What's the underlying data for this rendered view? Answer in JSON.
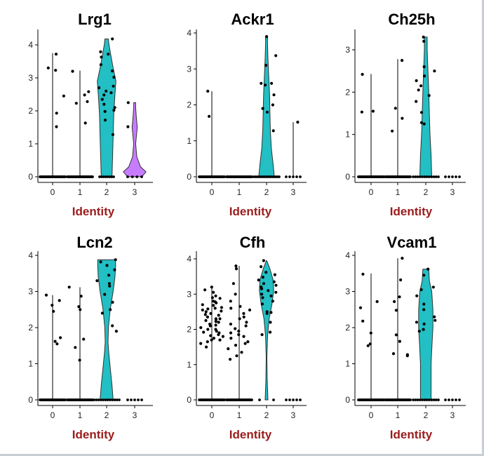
{
  "chart_data": [
    {
      "type": "violin",
      "title": "Lrg1",
      "xlabel": "Identity",
      "categories": [
        "0",
        "1",
        "2",
        "3"
      ],
      "yticks": [
        0,
        1,
        2,
        3,
        4
      ],
      "ylim": [
        0,
        4.2
      ],
      "colors": {
        "2": "#22bfc4",
        "3": "#c77cff"
      },
      "groups": [
        {
          "category": "0",
          "max": 3.75,
          "zero_count": 40,
          "points": [
            3.72,
            3.3,
            3.23,
            2.45,
            1.93,
            1.52
          ]
        },
        {
          "category": "1",
          "max": 3.22,
          "zero_count": 40,
          "points": [
            3.2,
            2.58,
            2.48,
            2.28,
            1.63,
            2.23
          ]
        },
        {
          "category": "2",
          "max": 4.18,
          "zero_count": 8,
          "points": [
            4.18,
            3.79,
            3.72,
            3.63,
            3.4,
            3.21,
            3.02,
            2.75,
            2.7,
            2.6,
            2.55,
            2.48,
            2.35,
            2.2,
            2.1,
            2.02,
            1.98,
            1.72,
            1.28
          ],
          "violin": [
            [
              0,
              0.45
            ],
            [
              0.6,
              0.5
            ],
            [
              1.2,
              0.55
            ],
            [
              1.9,
              0.6
            ],
            [
              2.5,
              0.7
            ],
            [
              2.9,
              0.78
            ],
            [
              3.3,
              0.55
            ],
            [
              3.7,
              0.35
            ],
            [
              4.0,
              0.2
            ],
            [
              4.18,
              0.14
            ]
          ]
        },
        {
          "category": "3",
          "max": 2.25,
          "zero_count": 4,
          "points": [
            2.25,
            1.52
          ],
          "violin": [
            [
              0,
              0.6
            ],
            [
              0.15,
              0.95
            ],
            [
              0.3,
              0.5
            ],
            [
              0.6,
              0.18
            ],
            [
              1.0,
              0.08
            ],
            [
              1.5,
              0.22
            ],
            [
              1.8,
              0.14
            ],
            [
              2.1,
              0.08
            ],
            [
              2.25,
              0.08
            ]
          ]
        }
      ]
    },
    {
      "type": "violin",
      "title": "Ackr1",
      "xlabel": "Identity",
      "categories": [
        "0",
        "1",
        "2",
        "3"
      ],
      "yticks": [
        0,
        1,
        2,
        3,
        4
      ],
      "ylim": [
        0,
        4.1
      ],
      "colors": {
        "2": "#22bfc4"
      },
      "groups": [
        {
          "category": "0",
          "max": 2.38,
          "zero_count": 40,
          "points": [
            2.38,
            1.68
          ]
        },
        {
          "category": "1",
          "max": 0,
          "zero_count": 40,
          "points": []
        },
        {
          "category": "2",
          "max": 3.9,
          "zero_count": 16,
          "points": [
            3.9,
            3.37,
            3.1,
            2.6,
            2.6,
            2.55,
            2.28,
            2.0,
            1.9,
            1.8,
            1.28
          ],
          "violin": [
            [
              0,
              0.65
            ],
            [
              0.35,
              0.55
            ],
            [
              0.8,
              0.4
            ],
            [
              1.3,
              0.32
            ],
            [
              1.8,
              0.28
            ],
            [
              2.3,
              0.25
            ],
            [
              2.8,
              0.18
            ],
            [
              3.3,
              0.12
            ],
            [
              3.7,
              0.08
            ],
            [
              3.9,
              0.08
            ]
          ]
        },
        {
          "category": "3",
          "max": 1.52,
          "zero_count": 5,
          "points": [
            1.52
          ]
        }
      ]
    },
    {
      "type": "violin",
      "title": "Ch25h",
      "xlabel": "Identity",
      "categories": [
        "0",
        "1",
        "2",
        "3"
      ],
      "yticks": [
        0,
        1,
        2,
        3
      ],
      "ylim": [
        0,
        3.4
      ],
      "colors": {
        "2": "#22bfc4"
      },
      "groups": [
        {
          "category": "0",
          "max": 2.43,
          "zero_count": 40,
          "points": [
            2.42,
            1.55,
            1.53
          ]
        },
        {
          "category": "1",
          "max": 2.78,
          "zero_count": 40,
          "points": [
            2.75,
            1.62,
            1.38,
            1.08
          ]
        },
        {
          "category": "2",
          "max": 3.3,
          "zero_count": 12,
          "points": [
            3.3,
            3.2,
            2.6,
            2.5,
            2.38,
            2.27,
            2.15,
            2.05,
            1.92,
            1.78,
            1.52,
            1.28,
            1.25
          ],
          "violin": [
            [
              0,
              0.5
            ],
            [
              0.5,
              0.45
            ],
            [
              1.0,
              0.35
            ],
            [
              1.5,
              0.3
            ],
            [
              2.0,
              0.25
            ],
            [
              2.5,
              0.18
            ],
            [
              3.0,
              0.12
            ],
            [
              3.3,
              0.12
            ]
          ]
        },
        {
          "category": "3",
          "max": 0,
          "zero_count": 5,
          "points": []
        }
      ]
    },
    {
      "type": "violin",
      "title": "Lcn2",
      "xlabel": "Identity",
      "categories": [
        "0",
        "1",
        "2",
        "3"
      ],
      "yticks": [
        0,
        1,
        2,
        3,
        4
      ],
      "ylim": [
        0,
        4.1
      ],
      "colors": {
        "2": "#22bfc4"
      },
      "groups": [
        {
          "category": "0",
          "max": 2.9,
          "zero_count": 40,
          "points": [
            2.9,
            2.75,
            2.62,
            2.45,
            1.72,
            1.62,
            1.55
          ]
        },
        {
          "category": "1",
          "max": 3.12,
          "zero_count": 40,
          "points": [
            3.12,
            2.87,
            2.58,
            2.5,
            1.68,
            1.45,
            1.1
          ]
        },
        {
          "category": "2",
          "max": 3.88,
          "zero_count": 12,
          "points": [
            3.88,
            3.82,
            3.72,
            3.6,
            3.45,
            3.3,
            3.22,
            3.15,
            2.92,
            2.7,
            2.5,
            2.4,
            2.05,
            1.9
          ],
          "violin": [
            [
              0,
              0.55
            ],
            [
              0.4,
              0.45
            ],
            [
              0.9,
              0.3
            ],
            [
              1.3,
              0.18
            ],
            [
              1.6,
              0.12
            ],
            [
              2.0,
              0.15
            ],
            [
              2.5,
              0.3
            ],
            [
              3.0,
              0.55
            ],
            [
              3.4,
              0.7
            ],
            [
              3.7,
              0.75
            ],
            [
              3.88,
              0.75
            ]
          ]
        },
        {
          "category": "3",
          "max": 0,
          "zero_count": 5,
          "points": []
        }
      ]
    },
    {
      "type": "violin",
      "title": "Cfh",
      "xlabel": "Identity",
      "categories": [
        "0",
        "1",
        "2",
        "3"
      ],
      "yticks": [
        0,
        1,
        2,
        3,
        4
      ],
      "ylim": [
        0,
        4.1
      ],
      "colors": {
        "2": "#22bfc4"
      },
      "groups": [
        {
          "category": "0",
          "max": 3.2,
          "zero_count": 40,
          "points": [
            3.2,
            3.12,
            3.05,
            2.95,
            2.88,
            2.8,
            2.75,
            2.7,
            2.62,
            2.55,
            2.5,
            2.45,
            2.4,
            2.35,
            2.3,
            2.25,
            2.2,
            2.15,
            2.1,
            2.05,
            2.0,
            1.95,
            1.9,
            1.85,
            1.8,
            1.75,
            1.7,
            1.65,
            1.6,
            1.5,
            2.9,
            2.6,
            2.3,
            2.0,
            1.7,
            2.78,
            2.52,
            2.22,
            1.92,
            2.68,
            2.42,
            2.12,
            1.82,
            2.58,
            2.28
          ]
        },
        {
          "category": "1",
          "max": 3.8,
          "zero_count": 40,
          "points": [
            3.8,
            3.72,
            3.3,
            3.0,
            2.8,
            2.65,
            2.55,
            2.45,
            2.3,
            2.2,
            2.1,
            2.02,
            1.95,
            1.85,
            1.75,
            1.65,
            1.55,
            1.45,
            1.35,
            1.25,
            1.15,
            2.6,
            2.15,
            1.9,
            1.6,
            2.35,
            1.8
          ]
        },
        {
          "category": "2",
          "max": 3.95,
          "zero_count": 2,
          "points": [
            3.95,
            3.78,
            3.62,
            3.55,
            3.48,
            3.4,
            3.35,
            3.3,
            3.25,
            3.2,
            3.15,
            3.1,
            3.05,
            3.0,
            2.95,
            2.9,
            2.8,
            2.72,
            2.5,
            2.48,
            2.45,
            2.2,
            1.92,
            1.85
          ],
          "violin": [
            [
              0,
              0.12
            ],
            [
              0.6,
              0.05
            ],
            [
              1.2,
              0.03
            ],
            [
              1.8,
              0.08
            ],
            [
              2.3,
              0.22
            ],
            [
              2.7,
              0.45
            ],
            [
              3.1,
              0.6
            ],
            [
              3.4,
              0.55
            ],
            [
              3.7,
              0.3
            ],
            [
              3.95,
              0.02
            ]
          ]
        },
        {
          "category": "3",
          "max": 0,
          "zero_count": 5,
          "points": []
        }
      ]
    },
    {
      "type": "violin",
      "title": "Vcam1",
      "xlabel": "Identity",
      "categories": [
        "0",
        "1",
        "2",
        "3"
      ],
      "yticks": [
        0,
        1,
        2,
        3,
        4
      ],
      "ylim": [
        0,
        4.1
      ],
      "colors": {
        "2": "#22bfc4"
      },
      "groups": [
        {
          "category": "0",
          "max": 3.5,
          "zero_count": 40,
          "points": [
            3.48,
            2.72,
            2.55,
            2.18,
            1.85,
            1.55,
            1.5
          ]
        },
        {
          "category": "1",
          "max": 3.92,
          "zero_count": 40,
          "points": [
            3.92,
            3.32,
            2.85,
            2.72,
            2.48,
            1.8,
            1.62,
            1.28,
            1.25,
            1.22
          ]
        },
        {
          "category": "2",
          "max": 3.62,
          "zero_count": 12,
          "points": [
            3.62,
            3.45,
            3.12,
            3.05,
            2.88,
            2.65,
            2.5,
            2.3,
            2.2,
            2.15,
            2.1,
            1.95,
            1.9
          ],
          "violin": [
            [
              0,
              0.45
            ],
            [
              0.5,
              0.45
            ],
            [
              1.0,
              0.45
            ],
            [
              1.5,
              0.52
            ],
            [
              2.0,
              0.6
            ],
            [
              2.5,
              0.6
            ],
            [
              3.0,
              0.5
            ],
            [
              3.3,
              0.3
            ],
            [
              3.62,
              0.25
            ]
          ]
        },
        {
          "category": "3",
          "max": 0,
          "zero_count": 5,
          "points": []
        }
      ]
    }
  ]
}
